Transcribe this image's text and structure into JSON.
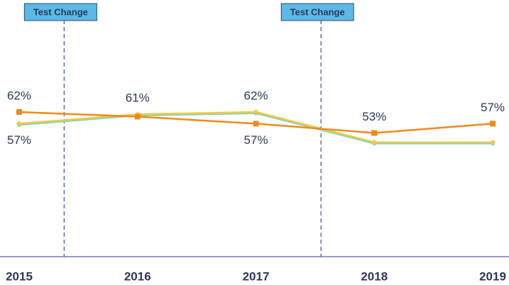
{
  "chart_data": {
    "type": "line",
    "x": [
      2015,
      2016,
      2017,
      2018,
      2019
    ],
    "xlim": [
      2015,
      2019
    ],
    "xticks": [
      2015,
      2016,
      2017,
      2018,
      2019
    ],
    "ylim": [
      0,
      110
    ],
    "series": [
      {
        "color": "#7fd3c0",
        "values": [
          56.5,
          60.5,
          61.5,
          48.5,
          48.5
        ]
      },
      {
        "color": "#f5c842",
        "values": [
          57,
          61,
          62,
          49,
          49
        ],
        "value_labels": [
          "57%",
          "61%",
          "62%",
          null,
          null
        ]
      },
      {
        "color": "#ef8a1e",
        "values": [
          62,
          60,
          57,
          53,
          57
        ],
        "value_labels": [
          "62%",
          null,
          "57%",
          "53%",
          "57%"
        ]
      }
    ],
    "annotations": [
      {
        "text": "Test Change",
        "x": 2015.38
      },
      {
        "text": "Test Change",
        "x": 2017.55
      }
    ]
  }
}
